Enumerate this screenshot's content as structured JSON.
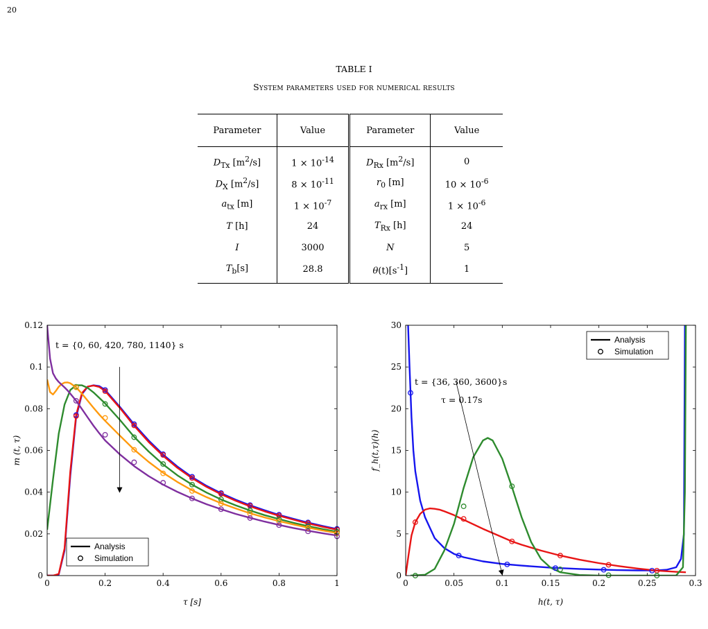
{
  "page_number": "20",
  "table": {
    "caption_label": "TABLE I",
    "caption_title": "System parameters used for numerical results",
    "headers": [
      "Parameter",
      "Value",
      "Parameter",
      "Value"
    ],
    "rows": [
      [
        "D_Tx [m^2/s]",
        "1 × 10^-14",
        "D_Rx [m^2/s]",
        "0"
      ],
      [
        "D_X [m^2/s]",
        "8 × 10^-11",
        "r_0 [m]",
        "10 × 10^-6"
      ],
      [
        "a_tx [m]",
        "1 × 10^-7",
        "a_rx [m]",
        "1 × 10^-6"
      ],
      [
        "T [h]",
        "24",
        "T_Rx [h]",
        "24"
      ],
      [
        "I",
        "3000",
        "N",
        "5"
      ],
      [
        "T_b[s]",
        "28.8",
        "θ(t)[s^-1]",
        "1"
      ]
    ]
  },
  "chart_data": [
    {
      "type": "line",
      "xlabel": "τ [s]",
      "ylabel": "m (t, τ)",
      "xlim": [
        0,
        1
      ],
      "ylim": [
        0,
        0.12
      ],
      "xticks": [
        0,
        0.2,
        0.4,
        0.6,
        0.8,
        1
      ],
      "xtick_labels": [
        "0",
        "0.2",
        "0.4",
        "0.6",
        "0.8",
        "1"
      ],
      "yticks": [
        0,
        0.02,
        0.04,
        0.06,
        0.08,
        0.1,
        0.12
      ],
      "ytick_labels": [
        "0",
        "0.02",
        "0.04",
        "0.06",
        "0.08",
        "0.1",
        "0.12"
      ],
      "grid": false,
      "legend": {
        "placement": "bottom-left",
        "entries": [
          "Analysis",
          "Simulation"
        ]
      },
      "annotation": "t = {0, 60, 420, 780, 1140} s",
      "annotation_arrow": {
        "from": [
          0.25,
          0.1
        ],
        "to": [
          0.25,
          0.04
        ]
      },
      "series_colors": [
        "#1515ee",
        "#e81515",
        "#2e8b2e",
        "#ff9a0e",
        "#7f2f9f"
      ],
      "series": [
        {
          "color": "#1515ee",
          "x": [
            0,
            0.02,
            0.04,
            0.06,
            0.08,
            0.1,
            0.12,
            0.14,
            0.16,
            0.18,
            0.2,
            0.25,
            0.3,
            0.35,
            0.4,
            0.45,
            0.5,
            0.55,
            0.6,
            0.65,
            0.7,
            0.75,
            0.8,
            0.85,
            0.9,
            0.95,
            1
          ],
          "y": [
            0,
            0,
            0.0005,
            0.012,
            0.048,
            0.076,
            0.087,
            0.0905,
            0.0912,
            0.0908,
            0.089,
            0.081,
            0.0725,
            0.0648,
            0.058,
            0.0522,
            0.0472,
            0.043,
            0.0395,
            0.0364,
            0.0337,
            0.0313,
            0.0291,
            0.0272,
            0.0254,
            0.0238,
            0.0223
          ],
          "sim_x": [
            0.1,
            0.2,
            0.3,
            0.4,
            0.5,
            0.6,
            0.7,
            0.8,
            0.9,
            1
          ],
          "sim_y": [
            0.077,
            0.089,
            0.0726,
            0.0582,
            0.0474,
            0.0396,
            0.0338,
            0.0292,
            0.0255,
            0.0224
          ]
        },
        {
          "color": "#e81515",
          "x": [
            0,
            0.02,
            0.04,
            0.06,
            0.08,
            0.1,
            0.12,
            0.14,
            0.16,
            0.18,
            0.2,
            0.25,
            0.3,
            0.35,
            0.4,
            0.45,
            0.5,
            0.55,
            0.6,
            0.65,
            0.7,
            0.75,
            0.8,
            0.85,
            0.9,
            0.95,
            1
          ],
          "y": [
            0,
            0,
            0.0008,
            0.013,
            0.05,
            0.077,
            0.0875,
            0.0906,
            0.0911,
            0.0904,
            0.0885,
            0.0805,
            0.0718,
            0.0641,
            0.0574,
            0.0516,
            0.0467,
            0.0425,
            0.039,
            0.0359,
            0.0332,
            0.0308,
            0.0287,
            0.0268,
            0.025,
            0.0234,
            0.022
          ],
          "sim_x": [
            0.1,
            0.2,
            0.3,
            0.4,
            0.5,
            0.6,
            0.7,
            0.8,
            0.9,
            1
          ],
          "sim_y": [
            0.0765,
            0.0884,
            0.072,
            0.0578,
            0.0468,
            0.0392,
            0.0334,
            0.0288,
            0.0251,
            0.022
          ]
        },
        {
          "color": "#2e8b2e",
          "x": [
            0,
            0.02,
            0.04,
            0.06,
            0.08,
            0.1,
            0.12,
            0.14,
            0.16,
            0.18,
            0.2,
            0.25,
            0.3,
            0.35,
            0.4,
            0.45,
            0.5,
            0.55,
            0.6,
            0.65,
            0.7,
            0.75,
            0.8,
            0.85,
            0.9,
            0.95,
            1
          ],
          "y": [
            0.022,
            0.046,
            0.068,
            0.082,
            0.089,
            0.0912,
            0.0912,
            0.09,
            0.0878,
            0.0852,
            0.0825,
            0.0748,
            0.0665,
            0.0595,
            0.0533,
            0.048,
            0.0436,
            0.0398,
            0.0365,
            0.0337,
            0.0312,
            0.029,
            0.0271,
            0.0253,
            0.0237,
            0.0223,
            0.021
          ],
          "sim_x": [
            0.1,
            0.2,
            0.3,
            0.4,
            0.5,
            0.6,
            0.7,
            0.8,
            0.9,
            1
          ],
          "sim_y": [
            0.0905,
            0.0823,
            0.0663,
            0.0535,
            0.0436,
            0.0366,
            0.0312,
            0.027,
            0.0237,
            0.021
          ]
        },
        {
          "color": "#ff9a0e",
          "x": [
            0,
            0.01,
            0.02,
            0.03,
            0.04,
            0.05,
            0.06,
            0.07,
            0.08,
            0.1,
            0.12,
            0.14,
            0.16,
            0.18,
            0.2,
            0.25,
            0.3,
            0.35,
            0.4,
            0.45,
            0.5,
            0.55,
            0.6,
            0.65,
            0.7,
            0.75,
            0.8,
            0.85,
            0.9,
            0.95,
            1
          ],
          "y": [
            0.094,
            0.088,
            0.0868,
            0.0885,
            0.0905,
            0.0918,
            0.0925,
            0.0926,
            0.0922,
            0.0902,
            0.0872,
            0.0838,
            0.0804,
            0.0772,
            0.0742,
            0.0672,
            0.0604,
            0.0545,
            0.0493,
            0.0448,
            0.0409,
            0.0376,
            0.0347,
            0.0322,
            0.0299,
            0.0279,
            0.0261,
            0.0245,
            0.023,
            0.0216,
            0.0204
          ],
          "sim_x": [
            0.1,
            0.2,
            0.3,
            0.4,
            0.5,
            0.6,
            0.7,
            0.8,
            0.9,
            1
          ],
          "sim_y": [
            0.0902,
            0.0756,
            0.0603,
            0.049,
            0.0406,
            0.0345,
            0.0297,
            0.026,
            0.0229,
            0.0203
          ]
        },
        {
          "color": "#7f2f9f",
          "x": [
            0,
            0.005,
            0.01,
            0.02,
            0.03,
            0.04,
            0.05,
            0.06,
            0.07,
            0.08,
            0.1,
            0.12,
            0.14,
            0.16,
            0.18,
            0.2,
            0.25,
            0.3,
            0.35,
            0.4,
            0.45,
            0.5,
            0.55,
            0.6,
            0.65,
            0.7,
            0.75,
            0.8,
            0.85,
            0.9,
            0.95,
            1
          ],
          "y": [
            0.12,
            0.112,
            0.104,
            0.097,
            0.0945,
            0.0928,
            0.0915,
            0.0902,
            0.0888,
            0.0872,
            0.0838,
            0.0798,
            0.0758,
            0.0718,
            0.0682,
            0.0648,
            0.0582,
            0.0525,
            0.0477,
            0.0436,
            0.0401,
            0.037,
            0.0342,
            0.0318,
            0.0296,
            0.0277,
            0.0259,
            0.0243,
            0.0228,
            0.0215,
            0.0203,
            0.0192
          ],
          "sim_x": [
            0.1,
            0.2,
            0.3,
            0.4,
            0.5,
            0.6,
            0.7,
            0.8,
            0.9,
            1
          ],
          "sim_y": [
            0.0838,
            0.0675,
            0.0543,
            0.0445,
            0.037,
            0.0318,
            0.0276,
            0.0242,
            0.0212,
            0.0188
          ]
        }
      ]
    },
    {
      "type": "line",
      "xlabel": "h(t, τ)",
      "ylabel": "f_h(t,τ)(h)",
      "xlim": [
        0,
        0.3
      ],
      "ylim": [
        0,
        30
      ],
      "xticks": [
        0,
        0.05,
        0.1,
        0.15,
        0.2,
        0.25,
        0.3
      ],
      "xtick_labels": [
        "0",
        "0.05",
        "0.1",
        "0.15",
        "0.2",
        "0.25",
        "0.3"
      ],
      "yticks": [
        0,
        5,
        10,
        15,
        20,
        25,
        30
      ],
      "ytick_labels": [
        "0",
        "5",
        "10",
        "15",
        "20",
        "25",
        "30"
      ],
      "grid": false,
      "legend": {
        "placement": "top-right",
        "entries": [
          "Analysis",
          "Simulation"
        ]
      },
      "annotation_line1": "t = {36, 360, 3600}s",
      "annotation_line2": "τ = 0.17s",
      "annotation_arrow": {
        "from": [
          0.052,
          23.3
        ],
        "to": [
          0.1,
          0.1
        ]
      },
      "series_colors": [
        "#1515ee",
        "#e81515",
        "#2e8b2e"
      ],
      "series": [
        {
          "color": "#1515ee",
          "x": [
            0.0025,
            0.004,
            0.006,
            0.008,
            0.01,
            0.015,
            0.02,
            0.03,
            0.04,
            0.05,
            0.06,
            0.08,
            0.1,
            0.12,
            0.15,
            0.18,
            0.2,
            0.22,
            0.24,
            0.26,
            0.27,
            0.28,
            0.285,
            0.288,
            0.289
          ],
          "y": [
            30,
            25,
            19,
            15,
            12.5,
            9,
            7,
            4.5,
            3.3,
            2.6,
            2.2,
            1.7,
            1.4,
            1.2,
            0.95,
            0.8,
            0.72,
            0.66,
            0.62,
            0.62,
            0.7,
            1.0,
            2.0,
            5,
            30
          ],
          "sim_x": [
            0.005,
            0.055,
            0.105,
            0.155,
            0.205,
            0.255
          ],
          "sim_y": [
            21.9,
            2.4,
            1.35,
            0.9,
            0.7,
            0.6
          ]
        },
        {
          "color": "#e81515",
          "x": [
            0,
            0.003,
            0.006,
            0.01,
            0.015,
            0.02,
            0.025,
            0.03,
            0.035,
            0.04,
            0.05,
            0.06,
            0.08,
            0.1,
            0.11,
            0.12,
            0.14,
            0.16,
            0.18,
            0.2,
            0.22,
            0.24,
            0.26,
            0.28,
            0.29
          ],
          "y": [
            0,
            2.5,
            4.8,
            6.4,
            7.4,
            7.9,
            8.05,
            8.0,
            7.9,
            7.7,
            7.25,
            6.7,
            5.6,
            4.6,
            4.1,
            3.7,
            3.0,
            2.4,
            1.9,
            1.5,
            1.15,
            0.85,
            0.6,
            0.45,
            0.4
          ],
          "sim_x": [
            0.01,
            0.06,
            0.11,
            0.16,
            0.21,
            0.26
          ],
          "sim_y": [
            6.4,
            6.8,
            4.1,
            2.4,
            1.3,
            0.6
          ]
        },
        {
          "color": "#2e8b2e",
          "x": [
            0.005,
            0.02,
            0.03,
            0.04,
            0.05,
            0.06,
            0.07,
            0.08,
            0.085,
            0.09,
            0.1,
            0.11,
            0.12,
            0.13,
            0.14,
            0.15,
            0.16,
            0.18,
            0.2,
            0.25,
            0.28,
            0.287,
            0.289,
            0.29
          ],
          "y": [
            0,
            0.1,
            0.8,
            3.0,
            6.2,
            10.5,
            14.2,
            16.2,
            16.5,
            16.2,
            14.0,
            10.6,
            7.0,
            4.0,
            2.0,
            0.95,
            0.4,
            0.07,
            0.01,
            0,
            0.02,
            1.0,
            10,
            30
          ],
          "sim_x": [
            0.01,
            0.06,
            0.11,
            0.16,
            0.21,
            0.26
          ],
          "sim_y": [
            0,
            8.3,
            10.7,
            0.75,
            0.05,
            0
          ]
        }
      ]
    }
  ]
}
